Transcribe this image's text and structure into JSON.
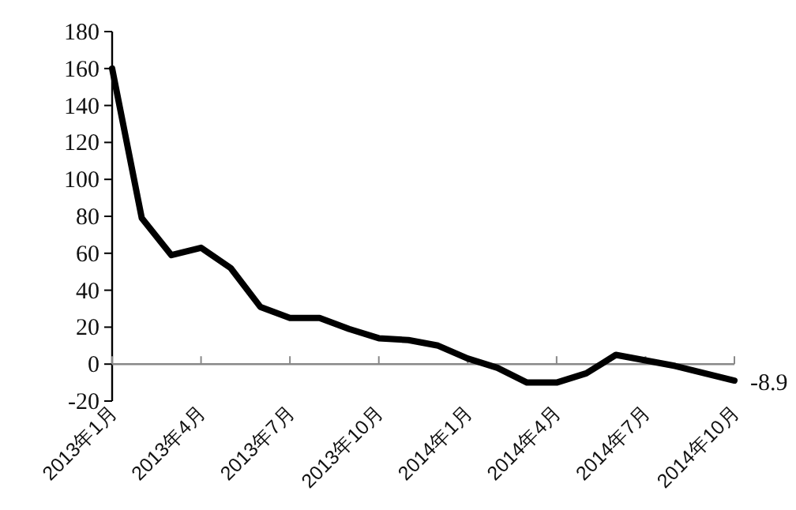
{
  "chart_data": {
    "type": "line",
    "categories": [
      "2013年1月",
      null,
      null,
      "2013年4月",
      null,
      null,
      "2013年7月",
      null,
      null,
      "2013年10月",
      null,
      null,
      "2014年1月",
      null,
      null,
      "2014年4月",
      null,
      null,
      "2014年7月",
      null,
      null,
      "2014年10月"
    ],
    "series": [
      {
        "color": "#000000",
        "values": [
          160,
          79,
          59,
          63,
          52,
          31,
          25,
          25,
          19,
          14,
          13,
          10,
          3,
          -2,
          -10,
          -10,
          -5,
          5,
          2,
          -1,
          -5,
          -8.9
        ],
        "value_labels": [
          null,
          null,
          null,
          null,
          null,
          null,
          null,
          null,
          null,
          null,
          null,
          null,
          null,
          null,
          null,
          null,
          null,
          null,
          null,
          null,
          null,
          "-8.9"
        ]
      }
    ],
    "ylim": [
      -20,
      180
    ],
    "yticks": [
      -20,
      0,
      20,
      40,
      60,
      80,
      100,
      120,
      140,
      160,
      180
    ],
    "grid": false,
    "marker": "none",
    "line_style": "solid"
  }
}
